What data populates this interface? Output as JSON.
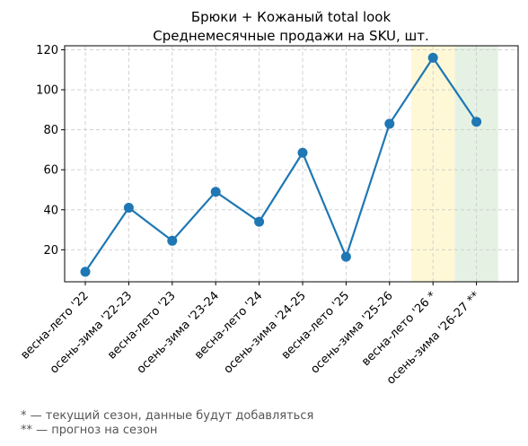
{
  "chart_data": {
    "type": "line",
    "title": "Брюки + Кожаный total look",
    "subtitle": "Среднемесячные продажи на SKU, шт.",
    "xlabel": "",
    "ylabel": "",
    "categories": [
      "весна-лето '22",
      "осень-зима '22-23",
      "весна-лето '23",
      "осень-зима '23-24",
      "весна-лето '24",
      "осень-зима '24-25",
      "весна-лето '25",
      "осень-зима '25-26",
      "весна-лето '26 *",
      "осень-зима '26-27 **"
    ],
    "series": [
      {
        "values": [
          9,
          41,
          24.5,
          49,
          34,
          68.5,
          16.5,
          83,
          116,
          84
        ],
        "color": "#1f77b4"
      }
    ],
    "ylim": [
      4,
      122
    ],
    "yticks": [
      20,
      40,
      60,
      80,
      100,
      120
    ],
    "grid": true,
    "highlights": [
      {
        "category_index": 8,
        "color": "#fff8d6",
        "meaning": "current season"
      },
      {
        "category_index": 9,
        "color": "#e5f2e3",
        "meaning": "forecast"
      }
    ]
  },
  "footnotes": [
    "* — текущий сезон, данные будут добавляться",
    "** — прогноз на сезон"
  ]
}
